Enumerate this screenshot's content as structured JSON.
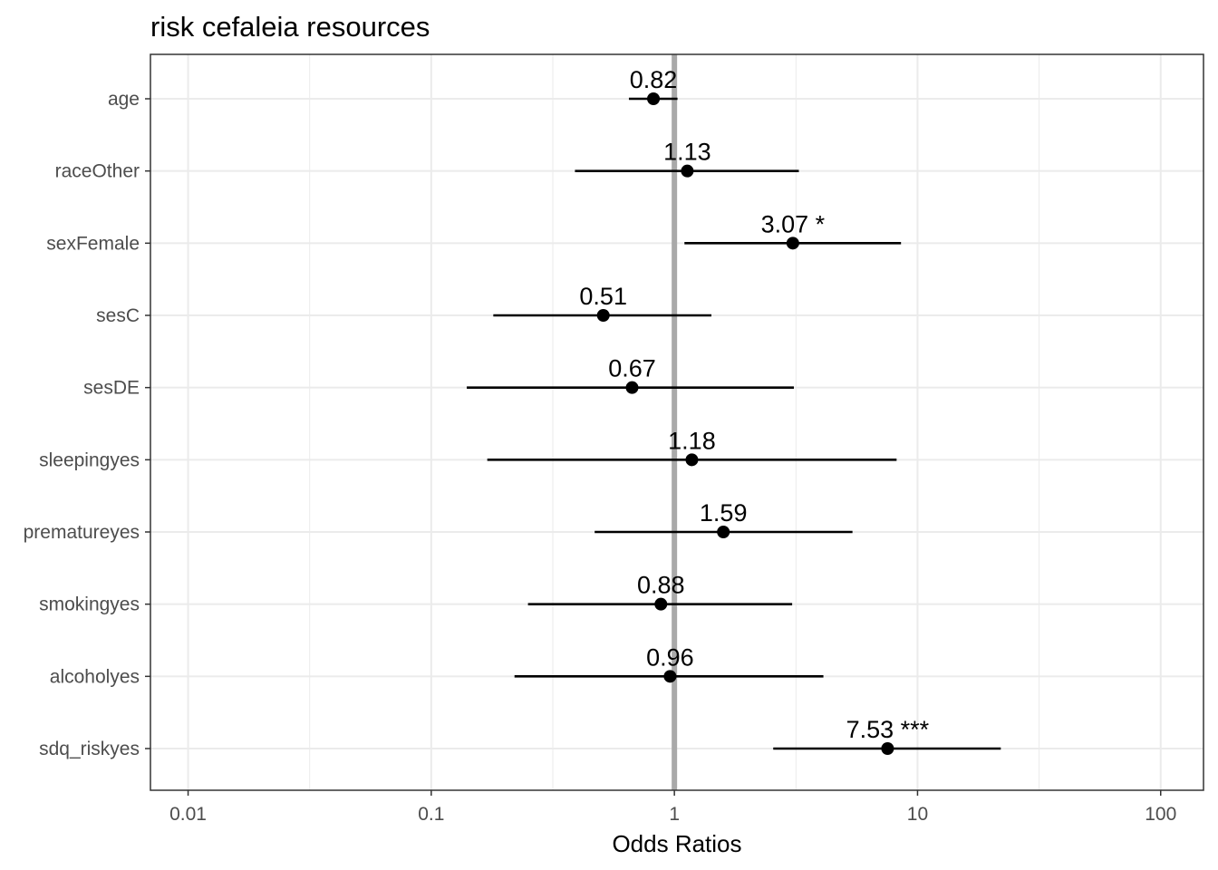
{
  "chart_data": {
    "type": "scatter",
    "subtype": "forest-plot",
    "title": "risk cefaleia resources",
    "xlabel": "Odds Ratios",
    "ylabel": "",
    "x_scale": "log10",
    "xlim": [
      0.007,
      150
    ],
    "x_ticks": [
      0.01,
      0.1,
      1,
      10,
      100
    ],
    "x_tick_labels": [
      "0.01",
      "0.1",
      "1",
      "10",
      "100"
    ],
    "reference_line": 1,
    "grid": true,
    "legend": "none",
    "terms": [
      {
        "term": "age",
        "estimate": 0.82,
        "ci_low": 0.65,
        "ci_high": 1.03,
        "label": "0.82"
      },
      {
        "term": "raceOther",
        "estimate": 1.13,
        "ci_low": 0.39,
        "ci_high": 3.25,
        "label": "1.13"
      },
      {
        "term": "sexFemale",
        "estimate": 3.07,
        "ci_low": 1.1,
        "ci_high": 8.55,
        "label": "3.07 *"
      },
      {
        "term": "sesC",
        "estimate": 0.51,
        "ci_low": 0.18,
        "ci_high": 1.42,
        "label": "0.51"
      },
      {
        "term": "sesDE",
        "estimate": 0.67,
        "ci_low": 0.14,
        "ci_high": 3.1,
        "label": "0.67"
      },
      {
        "term": "sleepingyes",
        "estimate": 1.18,
        "ci_low": 0.17,
        "ci_high": 8.2,
        "label": "1.18"
      },
      {
        "term": "prematureyes",
        "estimate": 1.59,
        "ci_low": 0.47,
        "ci_high": 5.4,
        "label": "1.59"
      },
      {
        "term": "smokingyes",
        "estimate": 0.88,
        "ci_low": 0.25,
        "ci_high": 3.05,
        "label": "0.88"
      },
      {
        "term": "alcoholyes",
        "estimate": 0.96,
        "ci_low": 0.22,
        "ci_high": 4.1,
        "label": "0.96"
      },
      {
        "term": "sdq_riskyes",
        "estimate": 7.53,
        "ci_low": 2.55,
        "ci_high": 22.0,
        "label": "7.53 ***"
      }
    ],
    "colors": {
      "points": "#000000",
      "ci_lines": "#000000",
      "reference_line": "#a9a9a9",
      "grid": "#ebebeb",
      "panel_border": "#333333"
    }
  }
}
